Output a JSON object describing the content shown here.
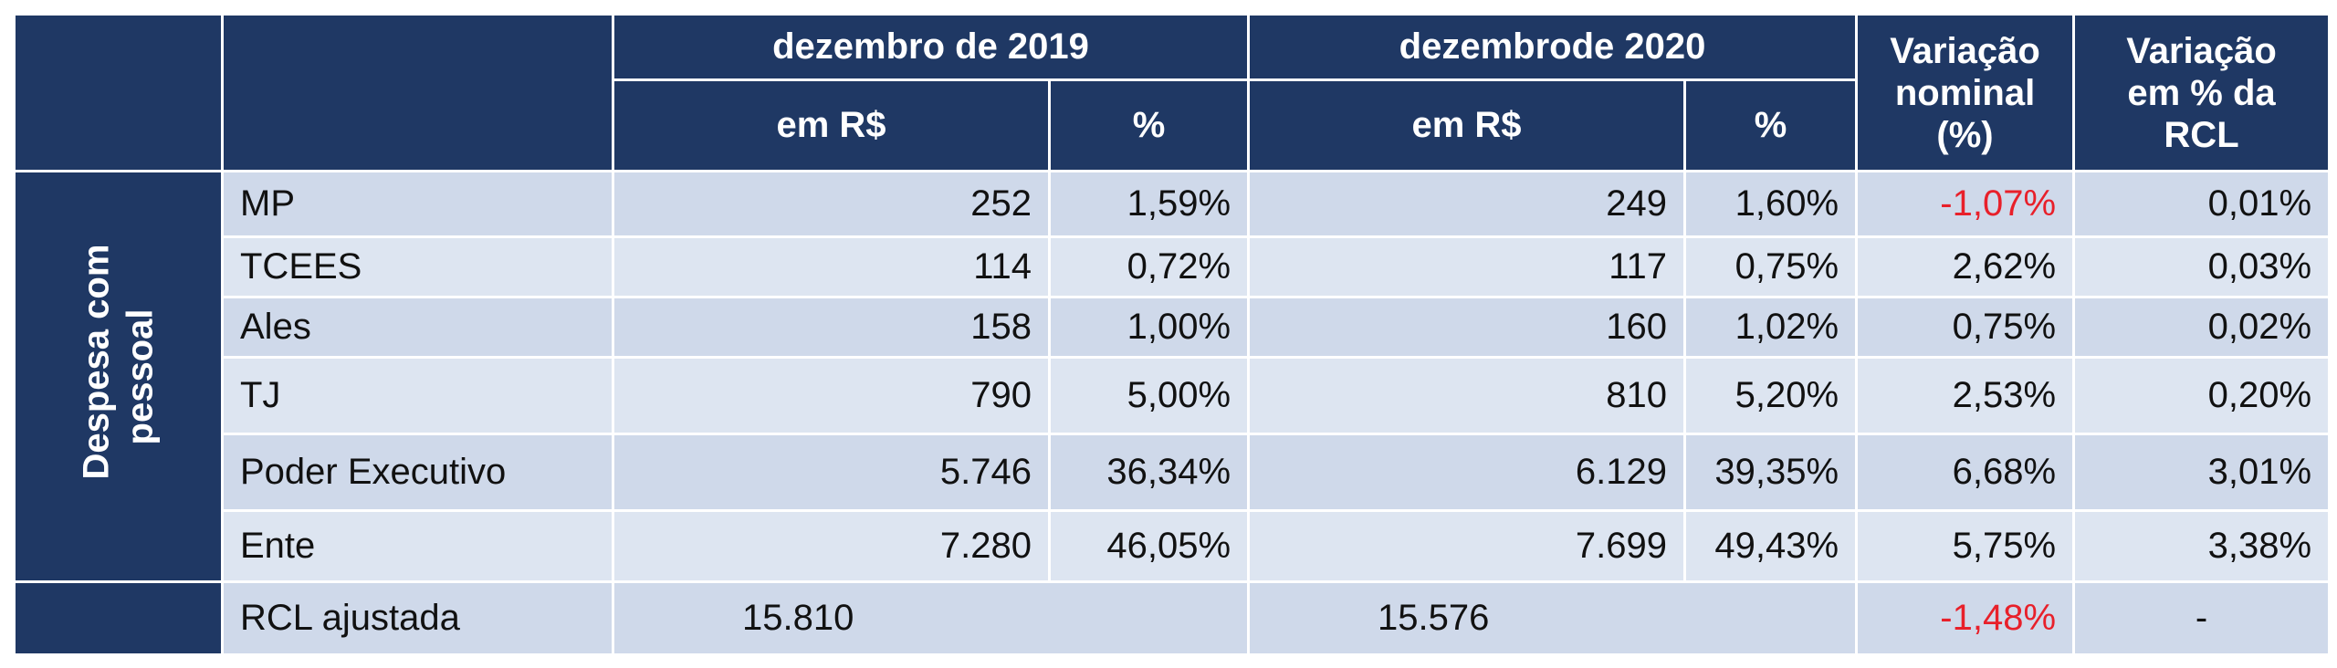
{
  "header": {
    "col_dez2019": "dezembro de 2019",
    "col_dez2020": "dezembrode 2020",
    "col_var_nominal_lines": [
      "Variação",
      "nominal",
      "(%)"
    ],
    "col_var_rcl_lines": [
      "Variação",
      "em % da",
      "RCL"
    ],
    "sub_em_rs_2019": "em R$",
    "sub_pct_2019": "%",
    "sub_em_rs_2020": "em R$",
    "sub_pct_2020": "%"
  },
  "group_label_lines": [
    "Despesa com",
    "pessoal"
  ],
  "rows": [
    {
      "name": "MP",
      "rs2019": "252",
      "pct2019": "1,59%",
      "rs2020": "249",
      "pct2020": "1,60%",
      "var_nominal": "-1,07%",
      "var_rcl": "0,01%"
    },
    {
      "name": "TCEES",
      "rs2019": "114",
      "pct2019": "0,72%",
      "rs2020": "117",
      "pct2020": "0,75%",
      "var_nominal": "2,62%",
      "var_rcl": "0,03%"
    },
    {
      "name": "Ales",
      "rs2019": "158",
      "pct2019": "1,00%",
      "rs2020": "160",
      "pct2020": "1,02%",
      "var_nominal": "0,75%",
      "var_rcl": "0,02%"
    },
    {
      "name": "TJ",
      "rs2019": "790",
      "pct2019": "5,00%",
      "rs2020": "810",
      "pct2020": "5,20%",
      "var_nominal": "2,53%",
      "var_rcl": "0,20%"
    },
    {
      "name": "Poder Executivo",
      "rs2019": "5.746",
      "pct2019": "36,34%",
      "rs2020": "6.129",
      "pct2020": "39,35%",
      "var_nominal": "6,68%",
      "var_rcl": "3,01%"
    },
    {
      "name": "Ente",
      "rs2019": "7.280",
      "pct2019": "46,05%",
      "rs2020": "7.699",
      "pct2020": "49,43%",
      "var_nominal": "5,75%",
      "var_rcl": "3,38%"
    }
  ],
  "rcl_row": {
    "name": "RCL ajustada",
    "val2019": "15.810",
    "val2020": "15.576",
    "var_nominal": "-1,48%",
    "var_rcl": "-"
  },
  "colors": {
    "header_bg": "#1f3864",
    "row_light": "#dde5f1",
    "row_dark": "#cfd9ea",
    "negative": "#e8202a"
  }
}
